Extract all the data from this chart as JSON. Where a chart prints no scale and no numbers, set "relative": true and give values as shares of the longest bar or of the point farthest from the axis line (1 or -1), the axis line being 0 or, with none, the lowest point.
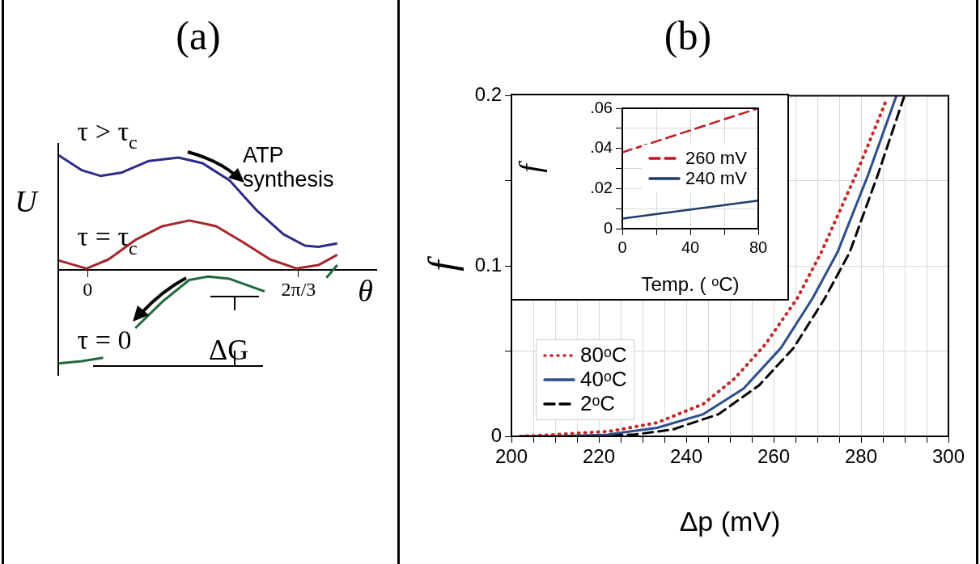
{
  "chart_data": [
    {
      "type": "line",
      "title": "(a)",
      "xlabel": "θ",
      "ylabel": "U",
      "relative": true,
      "xlim": [
        -0.29,
        2.86
      ],
      "xticks": [
        0,
        {
          "value": 2.09,
          "label": "2π/3"
        }
      ],
      "annotations": [
        "ATP synthesis",
        "ΔG"
      ],
      "series": [
        {
          "name": "τ > τ$_{c}$",
          "color": "#2e2a8c",
          "x": [
            -0.285,
            -0.059,
            0.128,
            0.341,
            0.608,
            0.901,
            1.14,
            1.407,
            1.673,
            1.94,
            2.153,
            2.286,
            2.473
          ],
          "values": [
            1,
            0.87,
            0.82,
            0.85,
            0.95,
            0.98,
            0.93,
            0.78,
            0.52,
            0.31,
            0.21,
            0.2,
            0.23
          ]
        },
        {
          "name": "τ = τ$_{c}$",
          "color": "#a5262a",
          "x": [
            -0.285,
            -0.01,
            0.208,
            0.474,
            0.741,
            1.007,
            1.274,
            1.54,
            1.807,
            2.073,
            2.286,
            2.473
          ],
          "values": [
            0.08,
            0.01,
            0.09,
            0.26,
            0.38,
            0.43,
            0.38,
            0.24,
            0.09,
            0.01,
            0.04,
            0.13
          ]
        },
        {
          "name": "τ = 0",
          "color": "#1e6b3a",
          "x": [
            -0.285,
            -0.059,
            0.155,
            0.3,
            0.474,
            0.741,
            1.007,
            1.194,
            1.407,
            1.753,
            2.1,
            2.366,
            2.473
          ],
          "values": [
            -0.82,
            -0.8,
            -0.77,
            null,
            -0.51,
            -0.28,
            -0.09,
            -0.06,
            -0.08,
            -0.19,
            null,
            -0.07,
            0.04
          ]
        }
      ]
    },
    {
      "type": "line",
      "title": "(b)",
      "xlabel": "Δp (mV)",
      "ylabel": "f",
      "xlim": [
        200,
        300
      ],
      "ylim": [
        0,
        0.2
      ],
      "grid": true,
      "legend": "bottom left",
      "xticks": [
        200,
        {
          "value": 205,
          "label": null
        },
        {
          "value": 210,
          "label": null
        },
        {
          "value": 215,
          "label": null
        },
        220,
        {
          "value": 225,
          "label": null
        },
        {
          "value": 230,
          "label": null
        },
        {
          "value": 235,
          "label": null
        },
        240,
        {
          "value": 245,
          "label": null
        },
        {
          "value": 250,
          "label": null
        },
        {
          "value": 255,
          "label": null
        },
        260,
        {
          "value": 265,
          "label": null
        },
        {
          "value": 270,
          "label": null
        },
        {
          "value": 275,
          "label": null
        },
        280,
        {
          "value": 285,
          "label": null
        },
        {
          "value": 290,
          "label": null
        },
        {
          "value": 295,
          "label": null
        },
        300
      ],
      "yticks": [
        0,
        {
          "value": 0.05,
          "label": null
        },
        0.1,
        {
          "value": 0.15,
          "label": null
        },
        0.2
      ],
      "series": [
        {
          "name": "80ᵒC",
          "color": "#c62828",
          "line_style": "dotted",
          "x": [
            202,
            210,
            222.6,
            233.3,
            243.9,
            251.1,
            258.1,
            265.4,
            270.9,
            278.9,
            285.9
          ],
          "values": [
            0,
            0.001,
            0.003,
            0.008,
            0.019,
            0.034,
            0.054,
            0.081,
            0.108,
            0.154,
            0.198
          ]
        },
        {
          "name": "40ᵒC",
          "color": "#2b4f8c",
          "line_style": "solid",
          "x": [
            202,
            210,
            222,
            233.3,
            243.9,
            253.1,
            261.7,
            268.9,
            274.6,
            281.7,
            288.1
          ],
          "values": [
            0,
            0,
            0.001,
            0.005,
            0.013,
            0.028,
            0.052,
            0.081,
            0.108,
            0.154,
            0.2
          ]
        },
        {
          "name": "2ᵒC",
          "color": "#000000",
          "line_style": "dashed",
          "x": [
            202,
            215,
            228,
            236.9,
            247.4,
            256.7,
            264.6,
            271.7,
            277.4,
            283.9,
            289.8
          ],
          "values": [
            0,
            0,
            0.001,
            0.004,
            0.013,
            0.03,
            0.052,
            0.081,
            0.108,
            0.154,
            0.199
          ]
        }
      ]
    },
    {
      "type": "line",
      "xlabel": "Temp. ( ᵒC)",
      "ylabel": "f",
      "xlim": [
        0,
        80
      ],
      "ylim": [
        0,
        0.06
      ],
      "grid": true,
      "legend": "right",
      "xticks": [
        0,
        {
          "value": 20,
          "label": null
        },
        40,
        {
          "value": 60,
          "label": null
        },
        80
      ],
      "yticks": [
        0,
        {
          "value": 0.01,
          "label": null
        },
        {
          "value": 0.02,
          "label": ".02"
        },
        {
          "value": 0.03,
          "label": null
        },
        {
          "value": 0.04,
          "label": ".04"
        },
        {
          "value": 0.05,
          "label": null
        },
        {
          "value": 0.06,
          "label": ".06"
        }
      ],
      "series": [
        {
          "name": "260 mV",
          "color": "#c0191f",
          "line_style": "dashed",
          "x": [
            0,
            80
          ],
          "values": [
            0.038,
            0.06
          ]
        },
        {
          "name": "240 mV",
          "color": "#1f3a6e",
          "line_style": "solid",
          "x": [
            0,
            80
          ],
          "values": [
            0.005,
            0.014
          ]
        }
      ]
    }
  ]
}
